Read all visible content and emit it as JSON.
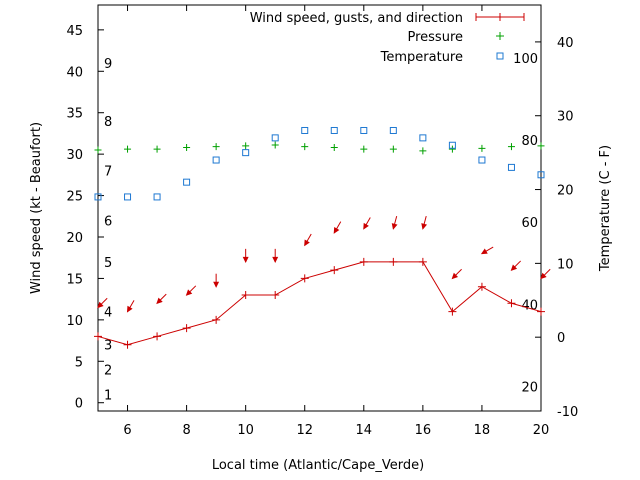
{
  "chart_data": {
    "type": "line",
    "xlabel": "Local time (Atlantic/Cape_Verde)",
    "ylabel": "Wind speed (kt - Beaufort)",
    "y2label": "Temperature (C - F)",
    "xlim": [
      5,
      20
    ],
    "ylim": [
      -1,
      48
    ],
    "y2lim": [
      -10,
      45
    ],
    "x_ticks": [
      6,
      8,
      10,
      12,
      14,
      16,
      18,
      20
    ],
    "y_ticks": [
      0,
      5,
      10,
      15,
      20,
      25,
      30,
      35,
      40,
      45
    ],
    "y2_ticks": [
      -10,
      0,
      10,
      20,
      30,
      40
    ],
    "beaufort_labels": [
      {
        "label": "1",
        "y": 1
      },
      {
        "label": "2",
        "y": 4
      },
      {
        "label": "3",
        "y": 7
      },
      {
        "label": "4",
        "y": 11
      },
      {
        "label": "5",
        "y": 17
      },
      {
        "label": "6",
        "y": 22
      },
      {
        "label": "7",
        "y": 28
      },
      {
        "label": "8",
        "y": 34
      },
      {
        "label": "9",
        "y": 41
      }
    ],
    "fahrenheit_labels": [
      {
        "label": "20",
        "temp": -6.7
      },
      {
        "label": "40",
        "temp": 4.4
      },
      {
        "label": "60",
        "temp": 15.6
      },
      {
        "label": "80",
        "temp": 26.7
      },
      {
        "label": "100",
        "temp": 37.8
      }
    ],
    "legend": {
      "position": "top-right",
      "wind": "Wind speed, gusts, and direction",
      "pressure": "Pressure",
      "temperature": "Temperature"
    },
    "colors": {
      "wind": "#cc0000",
      "pressure": "#00a000",
      "temperature": "#1e78d2"
    },
    "series": [
      {
        "name": "Wind speed, gusts, and direction",
        "axis": "y",
        "x": [
          5,
          6,
          7,
          8,
          9,
          10,
          11,
          12,
          13,
          14,
          15,
          16,
          17,
          18,
          19,
          20
        ],
        "values": [
          8,
          7,
          8,
          9,
          10,
          13,
          13,
          15,
          16,
          17,
          17,
          17,
          11,
          14,
          12,
          11
        ]
      },
      {
        "name": "Pressure",
        "axis": "y",
        "x": [
          5,
          6,
          7,
          8,
          9,
          10,
          11,
          12,
          13,
          14,
          15,
          16,
          17,
          18,
          19,
          20
        ],
        "values": [
          30.5,
          30.6,
          30.6,
          30.8,
          30.9,
          31.0,
          31.1,
          30.9,
          30.8,
          30.6,
          30.6,
          30.4,
          30.6,
          30.7,
          30.9,
          31.0
        ]
      },
      {
        "name": "Temperature",
        "axis": "y2",
        "x": [
          5,
          6,
          7,
          8,
          9,
          10,
          11,
          12,
          13,
          14,
          15,
          16,
          17,
          18,
          19,
          20
        ],
        "values": [
          19,
          19,
          19,
          21,
          24,
          25,
          27,
          28,
          28,
          28,
          28,
          27,
          26,
          24,
          23,
          22
        ]
      }
    ],
    "wind_direction_arrows": {
      "x": [
        5,
        6,
        7,
        8,
        9,
        10,
        11,
        12,
        13,
        14,
        15,
        16,
        17,
        18,
        19,
        20
      ],
      "y": [
        11.5,
        11,
        12,
        13,
        14,
        17,
        17,
        19,
        20.5,
        21,
        21,
        21,
        15,
        18,
        16,
        15
      ],
      "from_direction_deg": [
        45,
        30,
        45,
        45,
        0,
        0,
        0,
        30,
        30,
        30,
        15,
        15,
        45,
        60,
        45,
        45
      ]
    }
  }
}
